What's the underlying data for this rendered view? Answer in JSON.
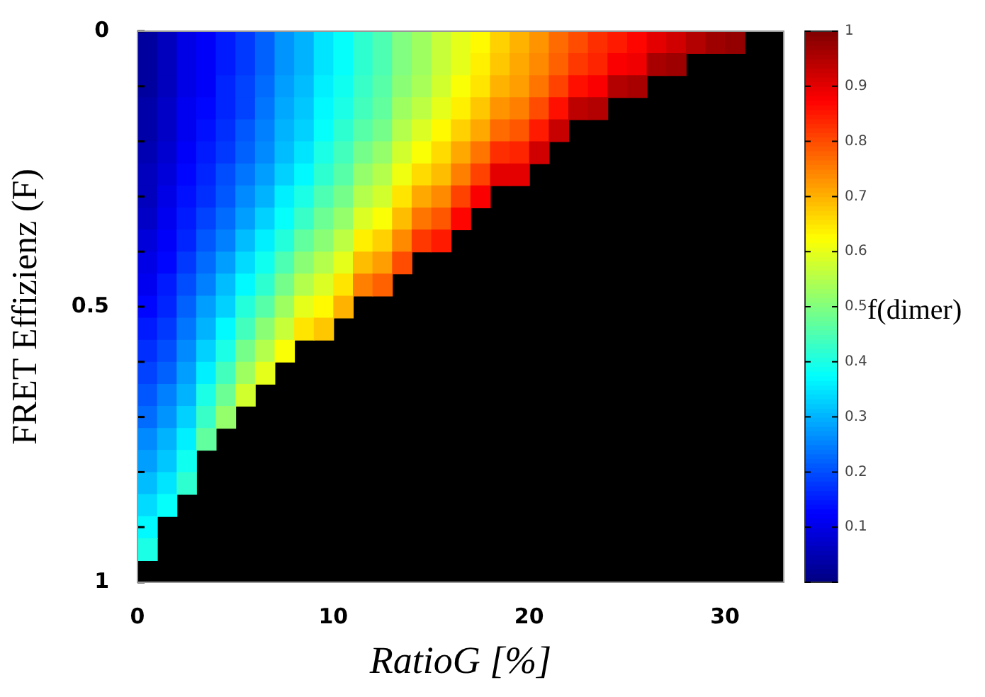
{
  "chart_data": {
    "type": "heatmap",
    "xlabel": "RatioG [%]",
    "ylabel": "FRET Effizienz (F)",
    "clabel": "f(dimer)",
    "x": [
      0.5,
      1.5,
      2.5,
      3.5,
      4.5,
      5.5,
      6.5,
      7.5,
      8.5,
      9.5,
      10.5,
      11.5,
      12.5,
      13.5,
      14.5,
      15.5,
      16.5,
      17.5,
      18.5,
      19.5,
      20.5,
      21.5,
      22.5,
      23.5,
      24.5,
      25.5,
      26.5,
      27.5,
      28.5,
      29.5,
      30.5
    ],
    "y": [
      0.02,
      0.06,
      0.1,
      0.14,
      0.18,
      0.22,
      0.26,
      0.3,
      0.34,
      0.38,
      0.42,
      0.46,
      0.5,
      0.54,
      0.58,
      0.62,
      0.66,
      0.7,
      0.74,
      0.78,
      0.82,
      0.86,
      0.9,
      0.94
    ],
    "xlim": [
      0,
      33
    ],
    "xticks": [
      0,
      10,
      20,
      30
    ],
    "ylim": [
      1,
      0
    ],
    "yticks": [
      0,
      {
        "value": 0.1,
        "label": null
      },
      {
        "value": 0.2,
        "label": null
      },
      {
        "value": 0.3,
        "label": null
      },
      {
        "value": 0.4,
        "label": null
      },
      0.5,
      {
        "value": 0.6,
        "label": null
      },
      {
        "value": 0.7,
        "label": null
      },
      {
        "value": 0.8,
        "label": null
      },
      {
        "value": 0.9,
        "label": null
      },
      1
    ],
    "clim": [
      0,
      1
    ],
    "cticks": [
      {
        "value": 0,
        "label": null
      },
      0.1,
      0.2,
      0.3,
      0.4,
      0.5,
      0.6,
      0.7,
      0.8,
      0.9,
      1
    ],
    "cells": [
      [
        0.03,
        0.06,
        0.1,
        0.12,
        0.15,
        0.18,
        0.22,
        0.27,
        0.3,
        0.35,
        0.38,
        0.42,
        0.45,
        0.5,
        0.53,
        0.57,
        0.6,
        0.63,
        0.67,
        0.7,
        0.73,
        0.77,
        0.8,
        0.83,
        0.85,
        0.87,
        0.9,
        0.92,
        0.95,
        0.97,
        0.98
      ],
      [
        0.03,
        0.06,
        0.1,
        0.12,
        0.15,
        0.18,
        0.22,
        0.27,
        0.3,
        0.35,
        0.38,
        0.42,
        0.45,
        0.5,
        0.53,
        0.57,
        0.6,
        0.64,
        0.68,
        0.71,
        0.74,
        0.78,
        0.82,
        0.84,
        0.88,
        0.89,
        0.96,
        0.97,
        null,
        null,
        null
      ],
      [
        0.03,
        0.06,
        0.1,
        0.12,
        0.16,
        0.19,
        0.23,
        0.28,
        0.31,
        0.36,
        0.39,
        0.43,
        0.46,
        0.51,
        0.54,
        0.58,
        0.62,
        0.65,
        0.7,
        0.72,
        0.76,
        0.81,
        0.86,
        0.88,
        0.95,
        0.96,
        null,
        null,
        null,
        null,
        null
      ],
      [
        0.04,
        0.07,
        0.11,
        0.13,
        0.16,
        0.19,
        0.24,
        0.29,
        0.32,
        0.37,
        0.4,
        0.44,
        0.47,
        0.53,
        0.56,
        0.6,
        0.64,
        0.68,
        0.73,
        0.75,
        0.8,
        0.86,
        0.94,
        0.95,
        null,
        null,
        null,
        null,
        null,
        null,
        null
      ],
      [
        0.04,
        0.07,
        0.11,
        0.14,
        0.17,
        0.21,
        0.25,
        0.3,
        0.33,
        0.38,
        0.42,
        0.46,
        0.49,
        0.55,
        0.59,
        0.63,
        0.67,
        0.71,
        0.77,
        0.79,
        0.85,
        0.93,
        null,
        null,
        null,
        null,
        null,
        null,
        null,
        null,
        null
      ],
      [
        0.05,
        0.08,
        0.12,
        0.15,
        0.18,
        0.22,
        0.26,
        0.31,
        0.35,
        0.4,
        0.44,
        0.49,
        0.52,
        0.58,
        0.62,
        0.66,
        0.71,
        0.76,
        0.83,
        0.84,
        0.92,
        null,
        null,
        null,
        null,
        null,
        null,
        null,
        null,
        null,
        null
      ],
      [
        0.06,
        0.09,
        0.13,
        0.16,
        0.2,
        0.24,
        0.28,
        0.33,
        0.37,
        0.42,
        0.46,
        0.52,
        0.55,
        0.61,
        0.66,
        0.69,
        0.75,
        0.81,
        0.9,
        0.9,
        null,
        null,
        null,
        null,
        null,
        null,
        null,
        null,
        null,
        null,
        null
      ],
      [
        0.06,
        0.1,
        0.14,
        0.17,
        0.21,
        0.26,
        0.3,
        0.36,
        0.4,
        0.45,
        0.49,
        0.55,
        0.58,
        0.65,
        0.71,
        0.74,
        0.81,
        0.88,
        null,
        null,
        null,
        null,
        null,
        null,
        null,
        null,
        null,
        null,
        null,
        null,
        null
      ],
      [
        0.07,
        0.11,
        0.15,
        0.19,
        0.23,
        0.28,
        0.33,
        0.38,
        0.43,
        0.48,
        0.52,
        0.59,
        0.62,
        0.69,
        0.76,
        0.79,
        0.87,
        null,
        null,
        null,
        null,
        null,
        null,
        null,
        null,
        null,
        null,
        null,
        null,
        null,
        null
      ],
      [
        0.09,
        0.12,
        0.16,
        0.21,
        0.25,
        0.31,
        0.36,
        0.41,
        0.47,
        0.51,
        0.56,
        0.64,
        0.67,
        0.74,
        0.82,
        0.85,
        null,
        null,
        null,
        null,
        null,
        null,
        null,
        null,
        null,
        null,
        null,
        null,
        null,
        null,
        null
      ],
      [
        0.1,
        0.13,
        0.18,
        0.23,
        0.28,
        0.34,
        0.39,
        0.45,
        0.51,
        0.55,
        0.6,
        0.69,
        0.72,
        0.8,
        null,
        null,
        null,
        null,
        null,
        null,
        null,
        null,
        null,
        null,
        null,
        null,
        null,
        null,
        null,
        null,
        null
      ],
      [
        0.11,
        0.15,
        0.2,
        0.25,
        0.31,
        0.37,
        0.42,
        0.49,
        0.55,
        0.59,
        0.65,
        0.75,
        0.78,
        null,
        null,
        null,
        null,
        null,
        null,
        null,
        null,
        null,
        null,
        null,
        null,
        null,
        null,
        null,
        null,
        null,
        null
      ],
      [
        0.13,
        0.16,
        0.22,
        0.28,
        0.33,
        0.41,
        0.46,
        0.53,
        0.6,
        0.63,
        0.7,
        null,
        null,
        null,
        null,
        null,
        null,
        null,
        null,
        null,
        null,
        null,
        null,
        null,
        null,
        null,
        null,
        null,
        null,
        null,
        null
      ],
      [
        0.15,
        0.18,
        0.24,
        0.3,
        0.37,
        0.44,
        0.51,
        0.57,
        0.65,
        0.68,
        null,
        null,
        null,
        null,
        null,
        null,
        null,
        null,
        null,
        null,
        null,
        null,
        null,
        null,
        null,
        null,
        null,
        null,
        null,
        null,
        null
      ],
      [
        0.17,
        0.2,
        0.26,
        0.33,
        0.4,
        0.49,
        0.55,
        0.62,
        null,
        null,
        null,
        null,
        null,
        null,
        null,
        null,
        null,
        null,
        null,
        null,
        null,
        null,
        null,
        null,
        null,
        null,
        null,
        null,
        null,
        null,
        null
      ],
      [
        0.19,
        0.22,
        0.28,
        0.36,
        0.44,
        0.53,
        0.6,
        null,
        null,
        null,
        null,
        null,
        null,
        null,
        null,
        null,
        null,
        null,
        null,
        null,
        null,
        null,
        null,
        null,
        null,
        null,
        null,
        null,
        null,
        null,
        null
      ],
      [
        0.21,
        0.25,
        0.3,
        0.4,
        0.48,
        0.58,
        null,
        null,
        null,
        null,
        null,
        null,
        null,
        null,
        null,
        null,
        null,
        null,
        null,
        null,
        null,
        null,
        null,
        null,
        null,
        null,
        null,
        null,
        null,
        null,
        null
      ],
      [
        0.23,
        0.27,
        0.33,
        0.43,
        0.52,
        null,
        null,
        null,
        null,
        null,
        null,
        null,
        null,
        null,
        null,
        null,
        null,
        null,
        null,
        null,
        null,
        null,
        null,
        null,
        null,
        null,
        null,
        null,
        null,
        null,
        null
      ],
      [
        0.26,
        0.3,
        0.36,
        0.47,
        null,
        null,
        null,
        null,
        null,
        null,
        null,
        null,
        null,
        null,
        null,
        null,
        null,
        null,
        null,
        null,
        null,
        null,
        null,
        null,
        null,
        null,
        null,
        null,
        null,
        null,
        null
      ],
      [
        0.28,
        0.32,
        0.39,
        null,
        null,
        null,
        null,
        null,
        null,
        null,
        null,
        null,
        null,
        null,
        null,
        null,
        null,
        null,
        null,
        null,
        null,
        null,
        null,
        null,
        null,
        null,
        null,
        null,
        null,
        null,
        null
      ],
      [
        0.31,
        0.35,
        0.42,
        null,
        null,
        null,
        null,
        null,
        null,
        null,
        null,
        null,
        null,
        null,
        null,
        null,
        null,
        null,
        null,
        null,
        null,
        null,
        null,
        null,
        null,
        null,
        null,
        null,
        null,
        null,
        null
      ],
      [
        0.34,
        0.38,
        null,
        null,
        null,
        null,
        null,
        null,
        null,
        null,
        null,
        null,
        null,
        null,
        null,
        null,
        null,
        null,
        null,
        null,
        null,
        null,
        null,
        null,
        null,
        null,
        null,
        null,
        null,
        null,
        null
      ],
      [
        0.37,
        null,
        null,
        null,
        null,
        null,
        null,
        null,
        null,
        null,
        null,
        null,
        null,
        null,
        null,
        null,
        null,
        null,
        null,
        null,
        null,
        null,
        null,
        null,
        null,
        null,
        null,
        null,
        null,
        null,
        null
      ],
      [
        0.4,
        null,
        null,
        null,
        null,
        null,
        null,
        null,
        null,
        null,
        null,
        null,
        null,
        null,
        null,
        null,
        null,
        null,
        null,
        null,
        null,
        null,
        null,
        null,
        null,
        null,
        null,
        null,
        null,
        null,
        null
      ]
    ]
  }
}
